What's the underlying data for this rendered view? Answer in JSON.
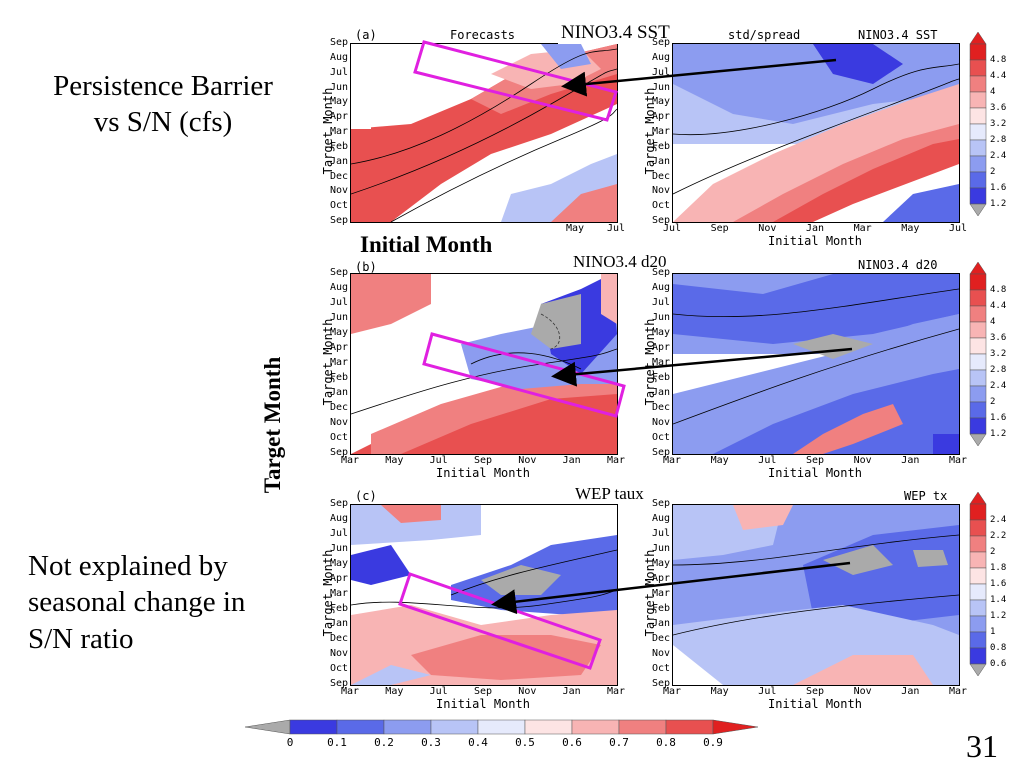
{
  "slide_number": "31",
  "notes": {
    "persistence_line1": "Persistence Barrier",
    "persistence_line2": "vs S/N (cfs)",
    "not_explained_line1": "Not explained by",
    "not_explained_line2": "seasonal change in",
    "not_explained_line3": "S/N ratio",
    "target_month": "Target Month",
    "initial_month": "Initial Month"
  },
  "rows": [
    {
      "slide_title": "NINO3.4 SST",
      "left_letter": "(a)",
      "left_caption": "Forecasts",
      "right_caption_left": "std/spread",
      "right_caption_right": "NINO3.4  SST"
    },
    {
      "slide_title": "NINO3.4 d20",
      "left_letter": "(b)",
      "right_caption_right": "NINO3.4  d20"
    },
    {
      "slide_title": "WEP taux",
      "left_letter": "(c)",
      "right_caption_right": "WEP  tx"
    }
  ],
  "axes": {
    "y_ticks": [
      "Sep",
      "Aug",
      "Jul",
      "Jun",
      "May",
      "Apr",
      "Mar",
      "Feb",
      "Jan",
      "Dec",
      "Nov",
      "Oct",
      "Sep"
    ],
    "y_label": "Target Month",
    "x_label": "Initial Month",
    "row1_left_x_ticks": [
      "May",
      "Jul"
    ],
    "row1_right_x_ticks": [
      "Jul",
      "Sep",
      "Nov",
      "Jan",
      "Mar",
      "May",
      "Jul"
    ],
    "x_ticks": [
      "Mar",
      "May",
      "Jul",
      "Sep",
      "Nov",
      "Jan",
      "Mar"
    ]
  },
  "colorbars": {
    "right_top": [
      "4.8",
      "4.4",
      "4",
      "3.6",
      "3.2",
      "2.8",
      "2.4",
      "2",
      "1.6",
      "1.2"
    ],
    "right_mid": [
      "4.8",
      "4.4",
      "4",
      "3.6",
      "3.2",
      "2.8",
      "2.4",
      "2",
      "1.6",
      "1.2"
    ],
    "right_bottom": [
      "2.4",
      "2.2",
      "2",
      "1.8",
      "1.6",
      "1.4",
      "1.2",
      "1",
      "0.8",
      "0.6"
    ],
    "bottom": [
      "0",
      "0.1",
      "0.2",
      "0.3",
      "0.4",
      "0.5",
      "0.6",
      "0.7",
      "0.8",
      "0.9"
    ],
    "colors": [
      "#3a3ae0",
      "#5a6ae8",
      "#8c9cf0",
      "#b8c4f6",
      "#e6eafc",
      "#fde4e4",
      "#f8b4b4",
      "#f08080",
      "#e85050",
      "#e02020"
    ],
    "ends": {
      "low": "#aaaaaa",
      "high": "#e02020"
    }
  },
  "annotation_colors": {
    "box": "#e020e0",
    "arrow": "#000000"
  }
}
